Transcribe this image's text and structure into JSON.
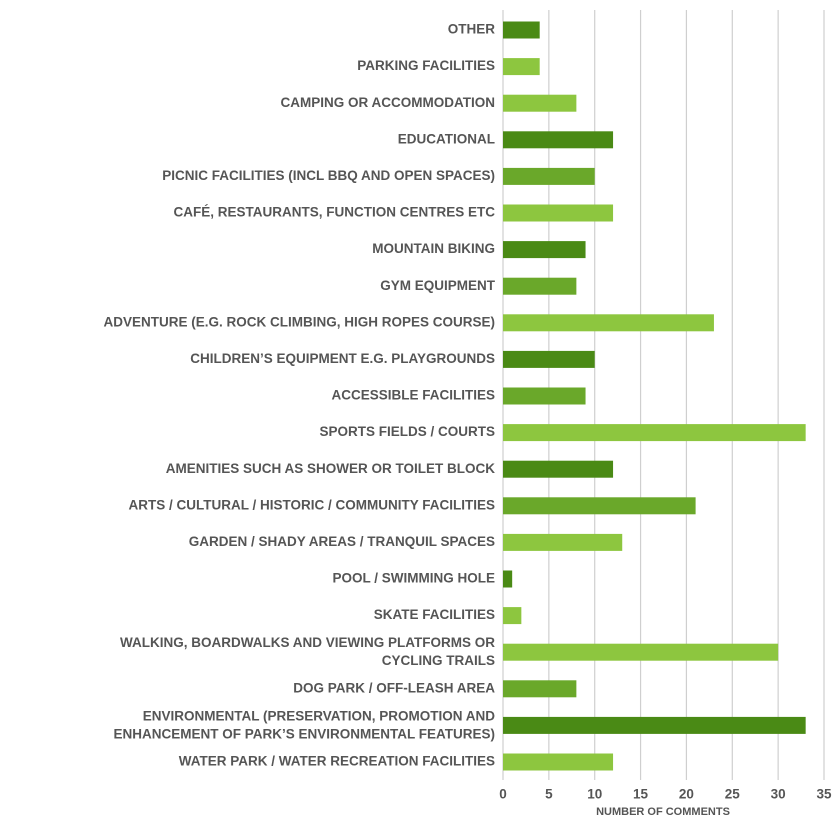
{
  "chart_data": {
    "type": "barh",
    "categories": [
      "OTHER",
      "PARKING FACILITIES",
      "CAMPING OR ACCOMMODATION",
      "EDUCATIONAL",
      "PICNIC FACILITIES (INCL BBQ AND OPEN SPACES)",
      "CAFÉ, RESTAURANTS, FUNCTION CENTRES ETC",
      "MOUNTAIN BIKING",
      "GYM EQUIPMENT",
      "ADVENTURE (E.G. ROCK CLIMBING, HIGH ROPES COURSE)",
      "CHILDREN’S EQUIPMENT E.G. PLAYGROUNDS",
      "ACCESSIBLE FACILITIES",
      "SPORTS FIELDS / COURTS",
      "AMENITIES SUCH AS SHOWER OR TOILET BLOCK",
      "ARTS / CULTURAL / HISTORIC / COMMUNITY FACILITIES",
      "GARDEN / SHADY AREAS / TRANQUIL SPACES",
      "POOL / SWIMMING HOLE",
      "SKATE FACILITIES",
      "WALKING, BOARDWALKS AND VIEWING PLATFORMS OR\nCYCLING TRAILS",
      "DOG PARK / OFF-LEASH AREA",
      "ENVIRONMENTAL (PRESERVATION, PROMOTION AND\nENHANCEMENT OF PARK’S ENVIRONMENTAL FEATURES)",
      "WATER PARK / WATER RECREATION FACILITIES"
    ],
    "values": [
      4,
      4,
      8,
      12,
      10,
      12,
      9,
      8,
      23,
      10,
      9,
      33,
      12,
      21,
      13,
      1,
      2,
      30,
      8,
      33,
      12
    ],
    "colors": [
      "#4a8a15",
      "#8dc63f",
      "#8dc63f",
      "#4a8a15",
      "#6aa82a",
      "#8dc63f",
      "#4a8a15",
      "#6aa82a",
      "#8dc63f",
      "#4a8a15",
      "#6aa82a",
      "#8dc63f",
      "#4a8a15",
      "#6aa82a",
      "#8dc63f",
      "#4a8a15",
      "#8dc63f",
      "#8dc63f",
      "#6aa82a",
      "#4a8a15",
      "#8dc63f"
    ],
    "x_label": "NUMBER OF COMMENTS",
    "xlim": [
      0,
      35
    ],
    "xticks": [
      0,
      5,
      10,
      15,
      20,
      25,
      30,
      35
    ],
    "grid": true
  }
}
